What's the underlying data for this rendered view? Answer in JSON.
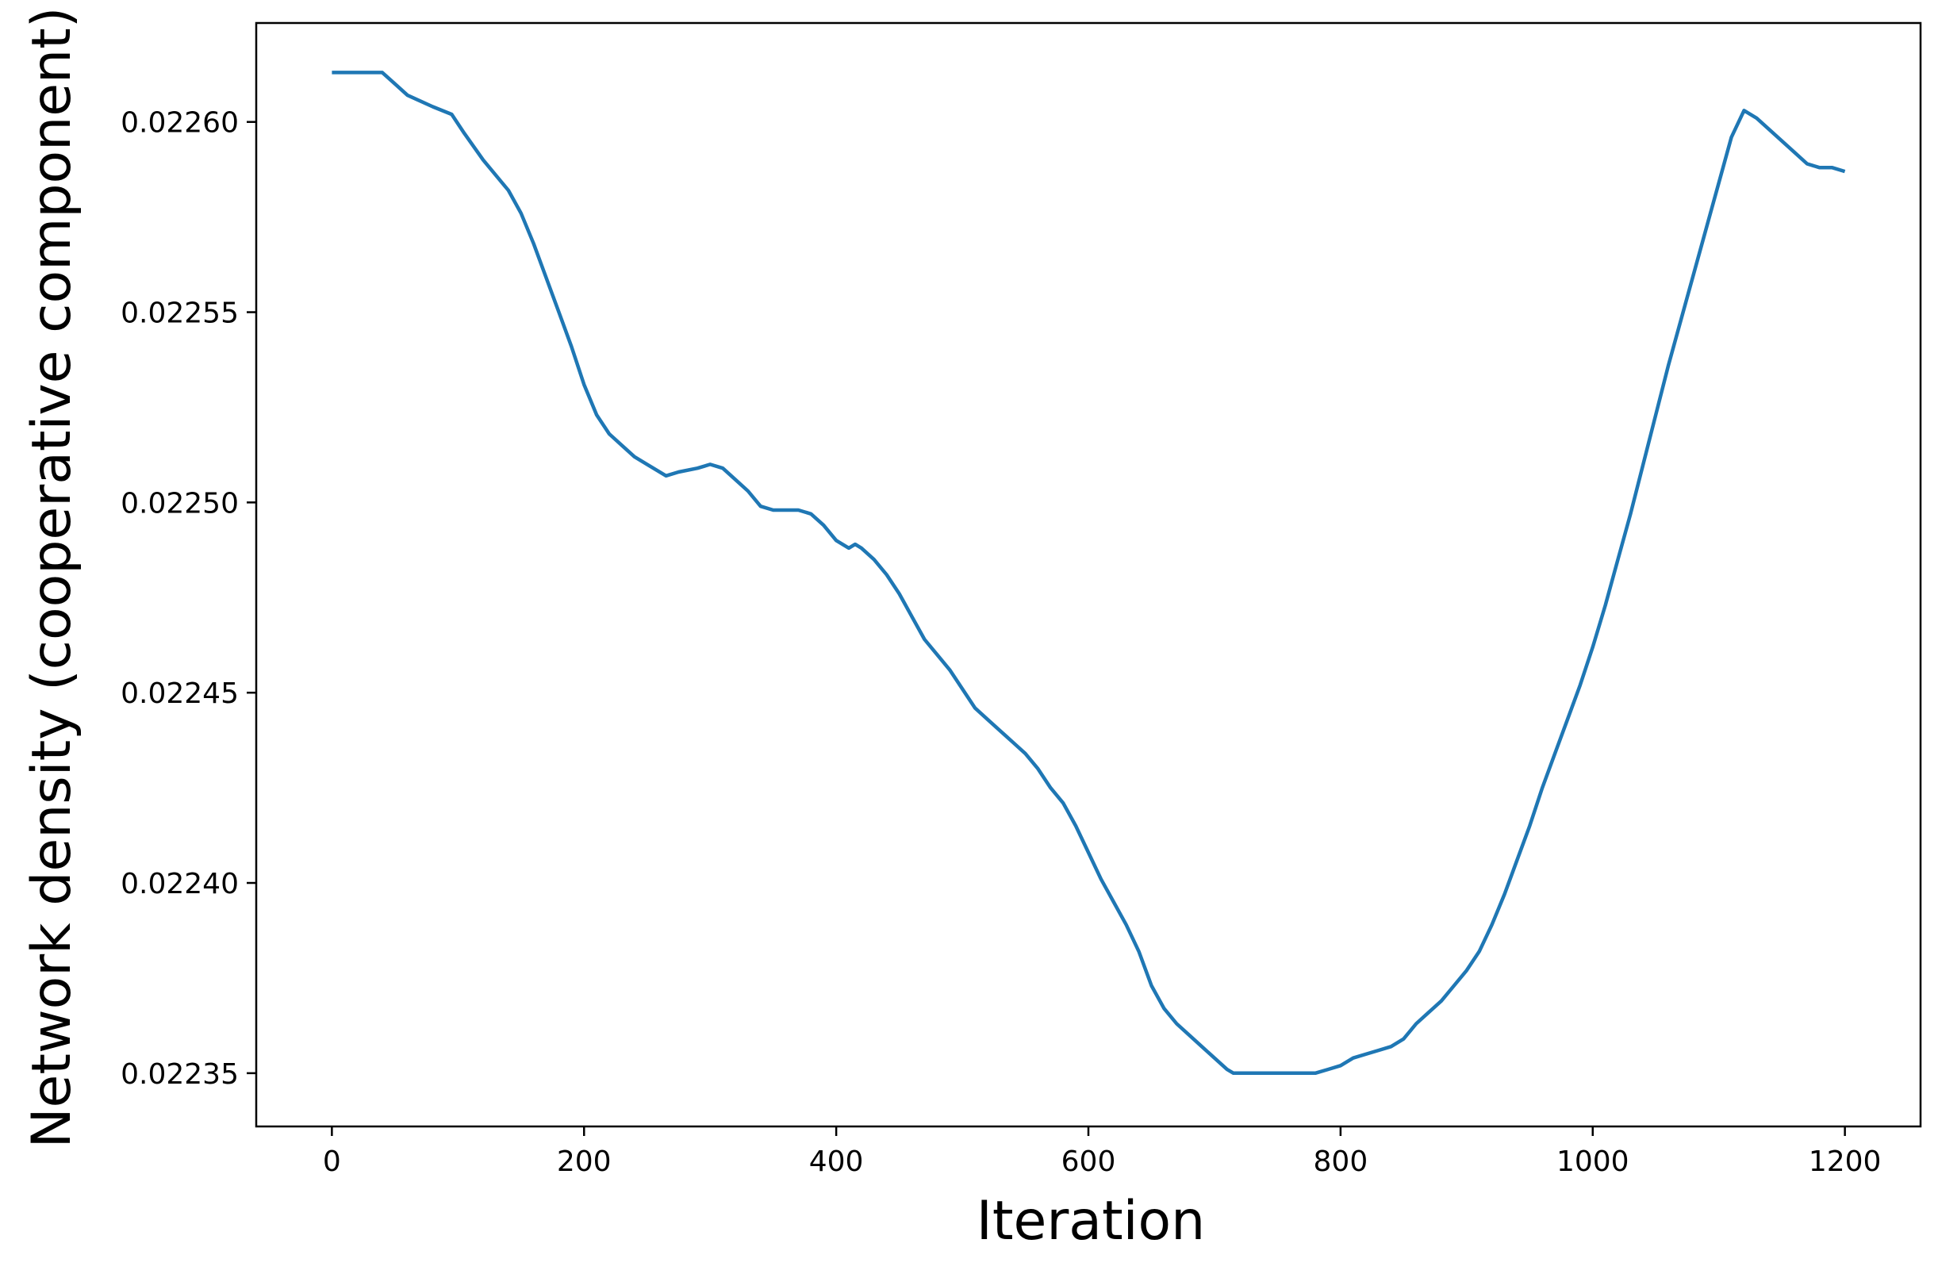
{
  "chart_data": {
    "type": "line",
    "title": "",
    "xlabel": "Iteration",
    "ylabel": "Network density (cooperative component)",
    "xlim": [
      -60,
      1260
    ],
    "ylim": [
      0.022336,
      0.022626
    ],
    "xticks": [
      0,
      200,
      400,
      600,
      800,
      1000,
      1200
    ],
    "xtick_labels": [
      "0",
      "200",
      "400",
      "600",
      "800",
      "1000",
      "1200"
    ],
    "yticks": [
      0.02235,
      0.0224,
      0.02245,
      0.0225,
      0.02255,
      0.0226
    ],
    "ytick_labels": [
      "0.02235",
      "0.02240",
      "0.02245",
      "0.02250",
      "0.02255",
      "0.02260"
    ],
    "grid": false,
    "series": [
      {
        "color": "#1f77b4",
        "x": [
          0,
          20,
          40,
          50,
          60,
          80,
          95,
          105,
          120,
          140,
          150,
          160,
          170,
          180,
          190,
          200,
          210,
          220,
          230,
          240,
          250,
          265,
          275,
          290,
          300,
          310,
          320,
          330,
          340,
          350,
          360,
          370,
          380,
          390,
          400,
          410,
          415,
          420,
          430,
          440,
          450,
          460,
          470,
          480,
          490,
          500,
          510,
          520,
          530,
          540,
          550,
          560,
          570,
          580,
          590,
          600,
          610,
          620,
          630,
          640,
          650,
          660,
          670,
          680,
          690,
          700,
          710,
          715,
          720,
          730,
          740,
          750,
          755,
          760,
          770,
          780,
          790,
          800,
          810,
          820,
          830,
          840,
          850,
          860,
          870,
          880,
          890,
          900,
          910,
          920,
          930,
          940,
          950,
          960,
          970,
          980,
          990,
          1000,
          1010,
          1020,
          1030,
          1040,
          1050,
          1060,
          1070,
          1080,
          1090,
          1100,
          1110,
          1120,
          1130,
          1140,
          1150,
          1160,
          1170,
          1180,
          1190,
          1200
        ],
        "y": [
          0.022613,
          0.022613,
          0.022613,
          0.02261,
          0.022607,
          0.022604,
          0.022602,
          0.022597,
          0.02259,
          0.022582,
          0.022576,
          0.022568,
          0.022559,
          0.02255,
          0.022541,
          0.022531,
          0.022523,
          0.022518,
          0.022515,
          0.022512,
          0.02251,
          0.022507,
          0.022508,
          0.022509,
          0.02251,
          0.022509,
          0.022506,
          0.022503,
          0.022499,
          0.022498,
          0.022498,
          0.022498,
          0.022497,
          0.022494,
          0.02249,
          0.022488,
          0.022489,
          0.022488,
          0.022485,
          0.022481,
          0.022476,
          0.02247,
          0.022464,
          0.02246,
          0.022456,
          0.022451,
          0.022446,
          0.022443,
          0.02244,
          0.022437,
          0.022434,
          0.02243,
          0.022425,
          0.022421,
          0.022415,
          0.022408,
          0.022401,
          0.022395,
          0.022389,
          0.022382,
          0.022373,
          0.022367,
          0.022363,
          0.02236,
          0.022357,
          0.022354,
          0.022351,
          0.02235,
          0.02235,
          0.02235,
          0.02235,
          0.02235,
          0.02235,
          0.02235,
          0.02235,
          0.02235,
          0.022351,
          0.022352,
          0.022354,
          0.022355,
          0.022356,
          0.022357,
          0.022359,
          0.022363,
          0.022366,
          0.022369,
          0.022373,
          0.022377,
          0.022382,
          0.022389,
          0.022397,
          0.022406,
          0.022415,
          0.022425,
          0.022434,
          0.022443,
          0.022452,
          0.022462,
          0.022473,
          0.022485,
          0.022497,
          0.02251,
          0.022523,
          0.022536,
          0.022548,
          0.02256,
          0.022572,
          0.022584,
          0.022596,
          0.022603,
          0.022601,
          0.022598,
          0.022595,
          0.022592,
          0.022589,
          0.022588,
          0.022588,
          0.022587
        ]
      }
    ]
  }
}
